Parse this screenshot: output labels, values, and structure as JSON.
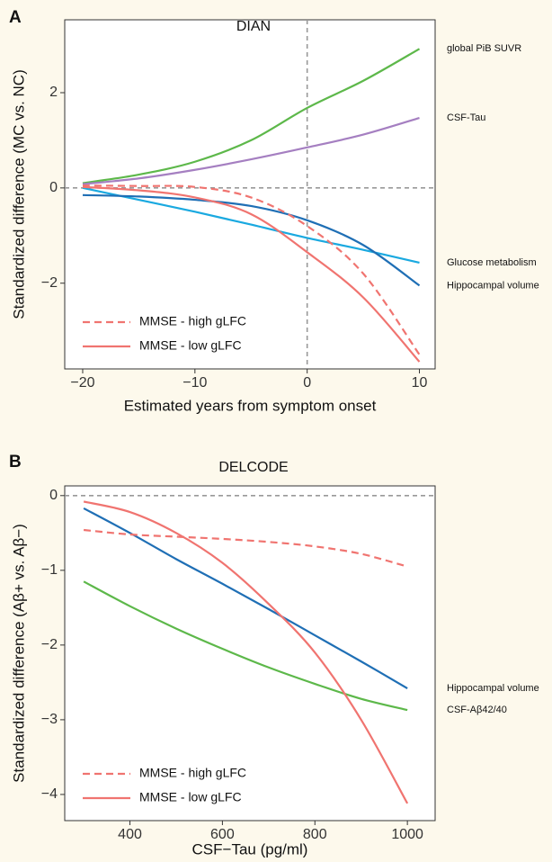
{
  "chart_data": [
    {
      "type": "line",
      "panel": "A",
      "title": "DIAN",
      "x_label": "Estimated years from symptom onset",
      "y_label": "Standardized difference (MC vs. NC)",
      "x": [
        -20,
        -15,
        -10,
        -5,
        0,
        5,
        10
      ],
      "xlim": [
        -21.6,
        11.4
      ],
      "ylim": [
        -3.8,
        3.53
      ],
      "xticks": [
        {
          "value": -20,
          "label": "−20"
        },
        {
          "value": -10,
          "label": "−10"
        },
        0,
        10
      ],
      "yticks": [
        {
          "value": -2,
          "label": "−2"
        },
        0,
        2
      ],
      "reference_lines": {
        "x": 0,
        "y": 0
      },
      "series": [
        {
          "name": "global PiB SUVR",
          "color": "#5db84a",
          "dashed": false,
          "in_legend": false,
          "values": [
            0.1,
            0.28,
            0.55,
            1.0,
            1.68,
            2.25,
            2.92
          ]
        },
        {
          "name": "CSF-Tau",
          "color": "#a57fc1",
          "dashed": false,
          "in_legend": false,
          "values": [
            0.08,
            0.2,
            0.38,
            0.6,
            0.85,
            1.12,
            1.47
          ]
        },
        {
          "name": "Glucose metabolism",
          "color": "#1aa9e0",
          "dashed": false,
          "in_legend": false,
          "values": [
            0,
            -0.25,
            -0.5,
            -0.77,
            -1.05,
            -1.3,
            -1.57
          ]
        },
        {
          "name": "Hippocampal volume",
          "color": "#1f6fb5",
          "dashed": false,
          "in_legend": false,
          "values": [
            -0.15,
            -0.18,
            -0.25,
            -0.38,
            -0.68,
            -1.2,
            -2.05
          ]
        },
        {
          "name": "MMSE - high gLFC",
          "color": "#f07470",
          "dashed": true,
          "in_legend": true,
          "values": [
            0.05,
            0.04,
            0.02,
            -0.2,
            -0.8,
            -1.8,
            -3.5
          ]
        },
        {
          "name": "MMSE - low gLFC",
          "color": "#f07470",
          "dashed": false,
          "in_legend": true,
          "values": [
            0.02,
            -0.05,
            -0.2,
            -0.55,
            -1.35,
            -2.3,
            -3.65
          ]
        }
      ]
    },
    {
      "type": "line",
      "panel": "B",
      "title": "DELCODE",
      "x_label": "CSF−Tau (pg/ml)",
      "y_label": "Standardized difference (Aβ+ vs. Aβ−)",
      "x": [
        300,
        400,
        500,
        600,
        700,
        800,
        900,
        1000
      ],
      "xlim": [
        259,
        1060
      ],
      "ylim": [
        -4.35,
        0.13
      ],
      "xticks": [
        400,
        600,
        800,
        1000
      ],
      "yticks": [
        {
          "value": -4,
          "label": "−4"
        },
        {
          "value": -3,
          "label": "−3"
        },
        {
          "value": -2,
          "label": "−2"
        },
        {
          "value": -1,
          "label": "−1"
        },
        0
      ],
      "reference_lines": {
        "y": 0
      },
      "series": [
        {
          "name": "Hippocampal volume",
          "color": "#1f6fb5",
          "dashed": false,
          "in_legend": false,
          "values": [
            -0.17,
            -0.5,
            -0.85,
            -1.18,
            -1.52,
            -1.87,
            -2.22,
            -2.58
          ]
        },
        {
          "name": "CSF-Aβ42/40",
          "color": "#5db84a",
          "dashed": false,
          "in_legend": false,
          "values": [
            -1.15,
            -1.48,
            -1.78,
            -2.05,
            -2.3,
            -2.52,
            -2.72,
            -2.87
          ]
        },
        {
          "name": "MMSE - high gLFC",
          "color": "#f07470",
          "dashed": true,
          "in_legend": true,
          "values": [
            -0.46,
            -0.52,
            -0.55,
            -0.58,
            -0.62,
            -0.68,
            -0.78,
            -0.95
          ]
        },
        {
          "name": "MMSE - low gLFC",
          "color": "#f07470",
          "dashed": false,
          "in_legend": true,
          "values": [
            -0.08,
            -0.22,
            -0.5,
            -0.9,
            -1.45,
            -2.1,
            -3.0,
            -4.12
          ]
        }
      ]
    }
  ]
}
